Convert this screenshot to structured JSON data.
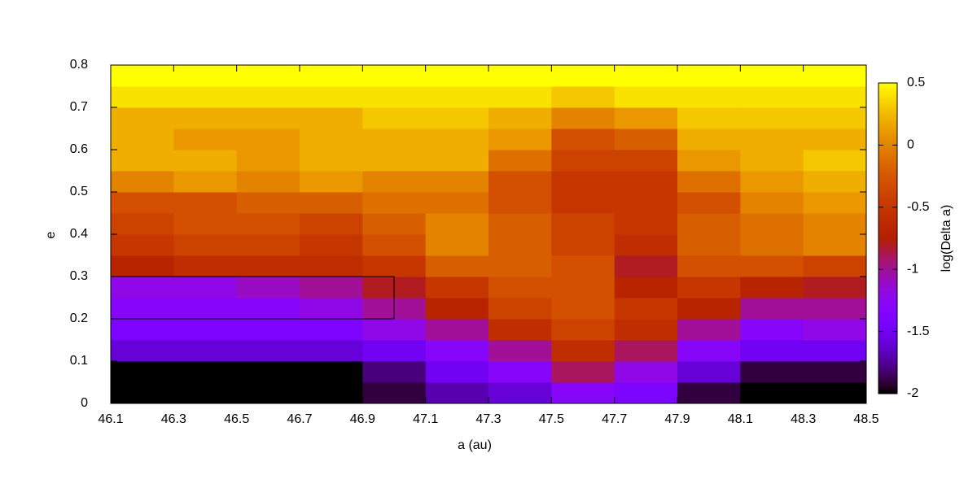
{
  "chart_data": {
    "type": "heatmap",
    "x_label": "a (au)",
    "y_label": "e",
    "colorbar_label": "log(Delta a)",
    "colormap": "gnuplot",
    "x": [
      46.2,
      46.4,
      46.6,
      46.8,
      47.0,
      47.2,
      47.4,
      47.6,
      47.8,
      48.0,
      48.2,
      48.4
    ],
    "y": [
      0.025,
      0.075,
      0.125,
      0.175,
      0.225,
      0.275,
      0.325,
      0.375,
      0.425,
      0.475,
      0.525,
      0.575,
      0.625,
      0.675,
      0.725,
      0.775
    ],
    "z": [
      [
        -2,
        -2,
        -2,
        -2,
        -1.9,
        -1.7,
        -1.6,
        -1.3,
        -1.4,
        -1.9,
        -2,
        -2
      ],
      [
        -2,
        -2,
        -2,
        -2,
        -1.8,
        -1.5,
        -1.3,
        -0.9,
        -1.2,
        -1.6,
        -1.9,
        -1.9
      ],
      [
        -1.6,
        -1.6,
        -1.6,
        -1.6,
        -1.5,
        -1.3,
        -1.0,
        -0.6,
        -0.9,
        -1.3,
        -1.5,
        -1.5
      ],
      [
        -1.4,
        -1.4,
        -1.4,
        -1.4,
        -1.2,
        -1.0,
        -0.6,
        -0.4,
        -0.6,
        -1.0,
        -1.3,
        -1.2
      ],
      [
        -1.3,
        -1.3,
        -1.3,
        -1.2,
        -1.0,
        -0.7,
        -0.4,
        -0.3,
        -0.5,
        -0.7,
        -1.0,
        -1.0
      ],
      [
        -1.2,
        -1.2,
        -1.1,
        -1.0,
        -0.8,
        -0.5,
        -0.3,
        -0.3,
        -0.7,
        -0.5,
        -0.7,
        -0.8
      ],
      [
        -0.7,
        -0.6,
        -0.6,
        -0.6,
        -0.5,
        -0.2,
        -0.2,
        -0.3,
        -0.8,
        -0.3,
        -0.3,
        -0.4
      ],
      [
        -0.5,
        -0.4,
        -0.4,
        -0.5,
        -0.3,
        0,
        -0.2,
        -0.4,
        -0.6,
        -0.2,
        -0.1,
        0
      ],
      [
        -0.4,
        -0.3,
        -0.3,
        -0.4,
        -0.2,
        0,
        -0.2,
        -0.4,
        -0.5,
        -0.2,
        -0.1,
        0
      ],
      [
        -0.3,
        -0.3,
        -0.2,
        -0.2,
        -0.1,
        -0.1,
        -0.3,
        -0.5,
        -0.5,
        -0.3,
        0,
        0.1
      ],
      [
        0,
        0.1,
        0,
        0.1,
        0,
        0,
        -0.3,
        -0.5,
        -0.5,
        -0.1,
        0.1,
        0.2
      ],
      [
        0.2,
        0.2,
        0.1,
        0.2,
        0.2,
        0.2,
        -0.1,
        -0.4,
        -0.4,
        0.1,
        0.2,
        0.3
      ],
      [
        0.2,
        0.1,
        0.1,
        0.2,
        0.2,
        0.2,
        0.1,
        -0.3,
        -0.2,
        0.2,
        0.2,
        0.2
      ],
      [
        0.2,
        0.2,
        0.2,
        0.2,
        0.3,
        0.3,
        0.2,
        0,
        0.1,
        0.3,
        0.3,
        0.3
      ],
      [
        0.4,
        0.4,
        0.4,
        0.4,
        0.4,
        0.4,
        0.4,
        0.3,
        0.4,
        0.4,
        0.4,
        0.4
      ],
      [
        0.5,
        0.5,
        0.5,
        0.5,
        0.5,
        0.5,
        0.5,
        0.5,
        0.5,
        0.5,
        0.5,
        0.5
      ]
    ],
    "region": {
      "x": [
        46.1,
        47.0
      ],
      "y": [
        0.2,
        0.3
      ]
    },
    "xlim": [
      46.1,
      48.5
    ],
    "xticks": [
      46.1,
      46.3,
      46.5,
      46.7,
      46.9,
      47.1,
      47.3,
      47.5,
      47.7,
      47.9,
      48.1,
      48.3,
      48.5
    ],
    "ylim": [
      0,
      0.8
    ],
    "yticks": [
      0,
      0.1,
      0.2,
      0.3,
      0.4,
      0.5,
      0.6,
      0.7,
      0.8
    ],
    "zlim": [
      -2,
      0.5
    ],
    "zticks": [
      -2,
      -1.5,
      -1,
      -0.5,
      0,
      0.5
    ]
  }
}
